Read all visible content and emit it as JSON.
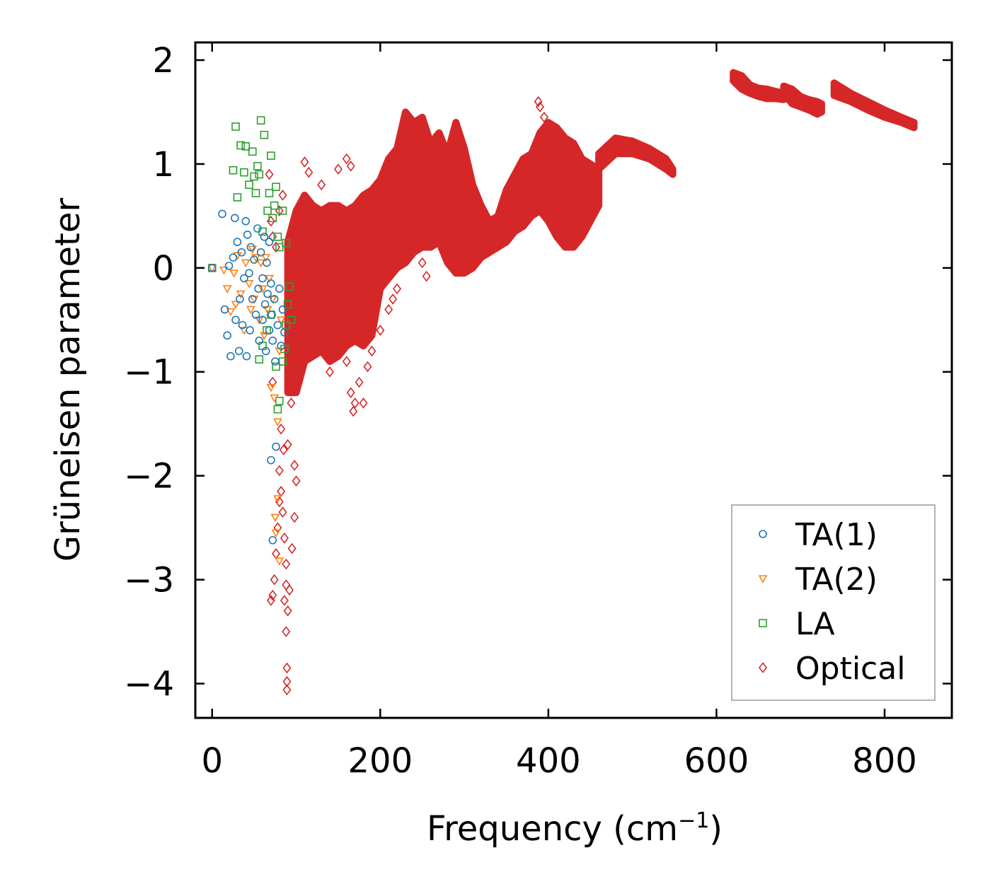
{
  "chart_data": {
    "type": "scatter",
    "title": "",
    "xlabel": "Frequency (cm",
    "xlabel_sup": "−1",
    "xlabel_close": ")",
    "ylabel": "Grüneisen parameter",
    "xlim": [
      -20,
      880
    ],
    "ylim": [
      -4.33,
      2.17
    ],
    "x_ticks": [
      0,
      200,
      400,
      600,
      800
    ],
    "x_tick_labels": [
      "0",
      "200",
      "400",
      "600",
      "800"
    ],
    "y_ticks": [
      2,
      1,
      0,
      -1,
      -2,
      -3,
      -4
    ],
    "y_tick_labels": [
      "2",
      "1",
      "0",
      "−1",
      "−2",
      "−3",
      "−4"
    ],
    "grid": false,
    "legend_position": "lower-right",
    "series": [
      {
        "name": "TA(1)",
        "marker": "circle",
        "color": "#1f77b4",
        "points": [
          [
            0,
            0
          ],
          [
            12,
            0.52
          ],
          [
            15,
            -0.4
          ],
          [
            18,
            -0.65
          ],
          [
            20,
            0.02
          ],
          [
            22,
            -0.85
          ],
          [
            25,
            0.1
          ],
          [
            27,
            0.48
          ],
          [
            28,
            -0.5
          ],
          [
            30,
            0.25
          ],
          [
            32,
            -0.8
          ],
          [
            33,
            -0.3
          ],
          [
            35,
            0.15
          ],
          [
            36,
            -0.55
          ],
          [
            38,
            -0.1
          ],
          [
            40,
            0.45
          ],
          [
            41,
            -0.85
          ],
          [
            42,
            0.32
          ],
          [
            44,
            -0.05
          ],
          [
            45,
            -0.6
          ],
          [
            46,
            0.2
          ],
          [
            48,
            -0.3
          ],
          [
            50,
            0.08
          ],
          [
            52,
            -0.45
          ],
          [
            54,
            0.38
          ],
          [
            55,
            -0.2
          ],
          [
            56,
            -0.7
          ],
          [
            58,
            0.15
          ],
          [
            60,
            -0.1
          ],
          [
            60,
            -0.5
          ],
          [
            62,
            0.3
          ],
          [
            63,
            -0.35
          ],
          [
            64,
            -0.8
          ],
          [
            65,
            0.05
          ],
          [
            66,
            -0.25
          ],
          [
            68,
            -0.6
          ],
          [
            68,
            0.25
          ],
          [
            70,
            -0.15
          ],
          [
            70,
            -1.85
          ],
          [
            71,
            -0.45
          ],
          [
            72,
            -0.7
          ],
          [
            72,
            -2.62
          ],
          [
            74,
            -0.3
          ],
          [
            75,
            -0.9
          ],
          [
            76,
            -1.72
          ],
          [
            78,
            -0.55
          ],
          [
            80,
            -0.2
          ],
          [
            82,
            -0.75
          ],
          [
            84,
            -0.4
          ],
          [
            86,
            -0.62
          ]
        ]
      },
      {
        "name": "TA(2)",
        "marker": "triangle-down",
        "color": "#ff7f0e",
        "points": [
          [
            0,
            0
          ],
          [
            14,
            -0.02
          ],
          [
            18,
            -0.2
          ],
          [
            22,
            -0.42
          ],
          [
            26,
            -0.05
          ],
          [
            28,
            -0.35
          ],
          [
            30,
            0.12
          ],
          [
            34,
            -0.25
          ],
          [
            38,
            -0.6
          ],
          [
            40,
            0.05
          ],
          [
            44,
            -0.15
          ],
          [
            46,
            -0.4
          ],
          [
            48,
            0.18
          ],
          [
            50,
            -0.3
          ],
          [
            52,
            0.1
          ],
          [
            56,
            -0.5
          ],
          [
            58,
            0.05
          ],
          [
            60,
            -0.2
          ],
          [
            62,
            -0.65
          ],
          [
            64,
            0.1
          ],
          [
            66,
            -0.4
          ],
          [
            68,
            -0.1
          ],
          [
            70,
            -1.15
          ],
          [
            72,
            -0.3
          ],
          [
            74,
            -1.25
          ],
          [
            75,
            -2.4
          ],
          [
            76,
            -2.55
          ],
          [
            78,
            -1.48
          ],
          [
            78,
            -2.22
          ],
          [
            80,
            -0.8
          ],
          [
            80,
            -2.82
          ],
          [
            82,
            -0.5
          ]
        ]
      },
      {
        "name": "LA",
        "marker": "square",
        "color": "#2ca02c",
        "points": [
          [
            0,
            0
          ],
          [
            28,
            1.36
          ],
          [
            25,
            0.94
          ],
          [
            30,
            0.68
          ],
          [
            34,
            1.18
          ],
          [
            38,
            0.92
          ],
          [
            40,
            1.17
          ],
          [
            44,
            0.8
          ],
          [
            48,
            1.12
          ],
          [
            50,
            0.88
          ],
          [
            52,
            0.72
          ],
          [
            54,
            0.98
          ],
          [
            56,
            0.9
          ],
          [
            58,
            1.42
          ],
          [
            60,
            0.35
          ],
          [
            62,
            1.28
          ],
          [
            66,
            0.55
          ],
          [
            68,
            0.72
          ],
          [
            70,
            1.08
          ],
          [
            72,
            0.48
          ],
          [
            74,
            0.6
          ],
          [
            76,
            0.78
          ],
          [
            78,
            0.3
          ],
          [
            80,
            0.2
          ],
          [
            84,
            0.55
          ],
          [
            88,
            0.24
          ],
          [
            56,
            -0.88
          ],
          [
            60,
            -0.75
          ],
          [
            65,
            -0.6
          ],
          [
            70,
            -0.45
          ],
          [
            76,
            -0.95
          ],
          [
            78,
            -1.36
          ],
          [
            80,
            -1.28
          ],
          [
            84,
            -0.9
          ],
          [
            86,
            -0.78
          ],
          [
            88,
            -0.55
          ],
          [
            90,
            -0.35
          ],
          [
            92,
            -0.18
          ],
          [
            94,
            -0.5
          ]
        ]
      },
      {
        "name": "Optical",
        "marker": "diamond",
        "color": "#d62728",
        "points": [
          [
            388,
            1.6
          ],
          [
            390,
            1.55
          ],
          [
            395,
            1.45
          ],
          [
            255,
            -0.08
          ],
          [
            250,
            0.05
          ],
          [
            80,
            -1.95
          ],
          [
            82,
            -2.15
          ],
          [
            84,
            -2.35
          ],
          [
            86,
            -2.6
          ],
          [
            88,
            -2.85
          ],
          [
            88,
            -3.05
          ],
          [
            86,
            -3.2
          ],
          [
            88,
            -3.5
          ],
          [
            89,
            -3.85
          ],
          [
            89,
            -3.98
          ],
          [
            89,
            -4.06
          ],
          [
            90,
            -3.3
          ],
          [
            92,
            -3.1
          ],
          [
            95,
            -2.7
          ],
          [
            98,
            -2.4
          ],
          [
            100,
            -2.05
          ],
          [
            72,
            -1.1
          ],
          [
            70,
            -3.2
          ],
          [
            72,
            -3.15
          ],
          [
            74,
            -3.0
          ],
          [
            76,
            -2.75
          ],
          [
            78,
            -2.5
          ],
          [
            80,
            -2.25
          ],
          [
            82,
            -1.55
          ],
          [
            85,
            -1.75
          ],
          [
            90,
            -1.7
          ],
          [
            94,
            -1.3
          ],
          [
            98,
            -1.9
          ],
          [
            70,
            0.45
          ],
          [
            68,
            0.9
          ],
          [
            72,
            0.3
          ],
          [
            76,
            0.2
          ],
          [
            80,
            0.55
          ],
          [
            84,
            0.7
          ],
          [
            110,
            1.02
          ],
          [
            115,
            0.92
          ],
          [
            130,
            0.8
          ],
          [
            150,
            0.95
          ],
          [
            160,
            1.05
          ],
          [
            165,
            0.98
          ],
          [
            140,
            -0.7
          ],
          [
            140,
            -1.0
          ],
          [
            160,
            -0.9
          ],
          [
            165,
            -1.2
          ],
          [
            168,
            -1.38
          ],
          [
            170,
            -1.3
          ],
          [
            175,
            -1.1
          ],
          [
            180,
            -1.3
          ],
          [
            185,
            -0.95
          ],
          [
            190,
            -0.8
          ],
          [
            200,
            -0.6
          ],
          [
            210,
            -0.4
          ],
          [
            215,
            -0.3
          ],
          [
            220,
            -0.2
          ]
        ],
        "envelope_dense": {
          "x": [
            90,
            100,
            110,
            120,
            130,
            140,
            150,
            160,
            170,
            180,
            190,
            200,
            210,
            220,
            230,
            240,
            250,
            260,
            270,
            280,
            290,
            300,
            310,
            320,
            330,
            340,
            350,
            360,
            370,
            380,
            390,
            400,
            410,
            420,
            430,
            440,
            450,
            460
          ],
          "upper": [
            0.25,
            0.55,
            0.7,
            0.6,
            0.55,
            0.6,
            0.6,
            0.55,
            0.6,
            0.7,
            0.75,
            0.85,
            1.05,
            1.15,
            1.5,
            1.4,
            1.45,
            1.2,
            1.3,
            1.1,
            1.4,
            1.15,
            0.8,
            0.6,
            0.45,
            0.5,
            0.75,
            0.9,
            1.05,
            1.1,
            1.3,
            1.4,
            1.35,
            1.25,
            1.2,
            1.05,
            1.0,
            0.95
          ],
          "lower": [
            -1.2,
            -1.2,
            -0.9,
            -0.85,
            -0.8,
            -0.9,
            -0.85,
            -0.75,
            -0.7,
            -0.75,
            -0.65,
            -0.2,
            -0.1,
            0.0,
            0.05,
            0.15,
            0.2,
            0.2,
            0.25,
            0.05,
            -0.05,
            -0.05,
            0.0,
            0.1,
            0.15,
            0.2,
            0.25,
            0.35,
            0.4,
            0.5,
            0.55,
            0.45,
            0.3,
            0.2,
            0.2,
            0.3,
            0.45,
            0.6
          ]
        },
        "bands": [
          {
            "x": [
              460,
              480,
              500,
              520,
              540,
              548
            ],
            "upper": [
              1.1,
              1.25,
              1.22,
              1.15,
              1.05,
              0.95
            ],
            "lower": [
              0.95,
              1.1,
              1.1,
              1.05,
              0.95,
              0.9
            ]
          },
          {
            "x": [
              620,
              630,
              640,
              650,
              660,
              670,
              680
            ],
            "upper": [
              1.88,
              1.85,
              1.76,
              1.73,
              1.72,
              1.7,
              1.68
            ],
            "lower": [
              1.8,
              1.72,
              1.68,
              1.65,
              1.63,
              1.63,
              1.62
            ]
          },
          {
            "x": [
              680,
              690,
              700,
              710,
              720,
              725
            ],
            "upper": [
              1.75,
              1.72,
              1.65,
              1.62,
              1.6,
              1.58
            ],
            "lower": [
              1.68,
              1.58,
              1.55,
              1.52,
              1.48,
              1.5
            ]
          },
          {
            "x": [
              740,
              760,
              780,
              800,
              820,
              835
            ],
            "upper": [
              1.78,
              1.68,
              1.6,
              1.52,
              1.45,
              1.4
            ],
            "lower": [
              1.66,
              1.6,
              1.52,
              1.45,
              1.4,
              1.35
            ]
          }
        ]
      }
    ]
  }
}
